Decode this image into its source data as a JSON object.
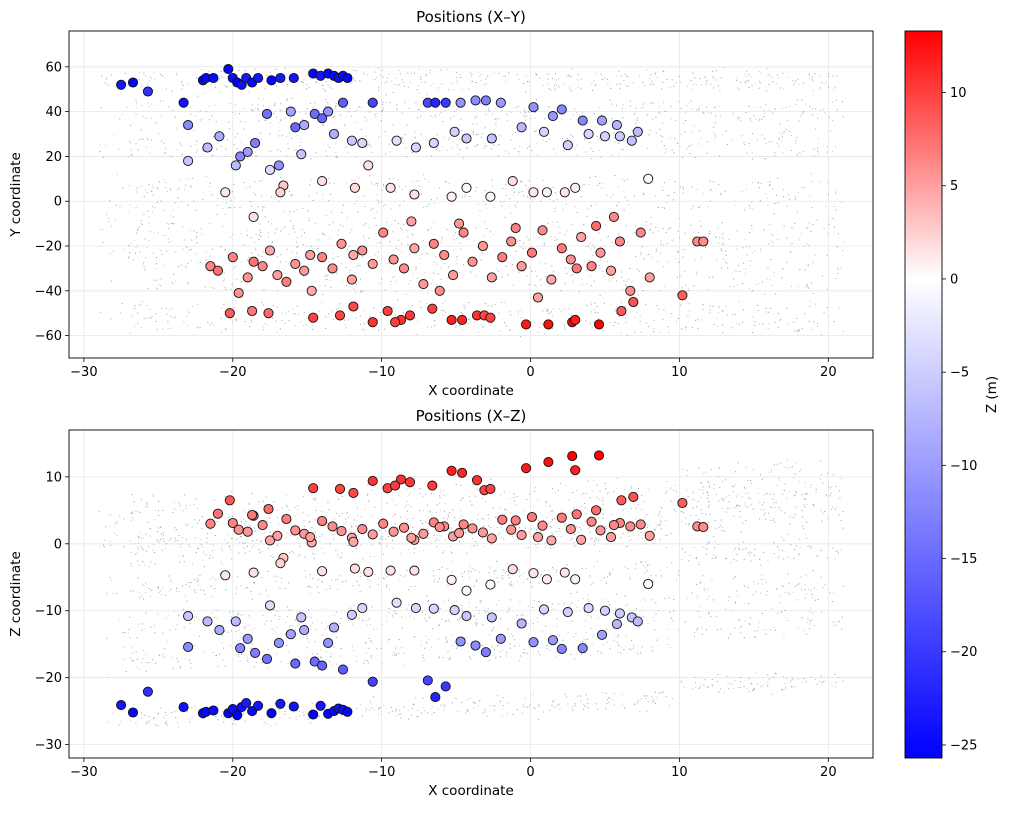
{
  "chart_data": {
    "type": "scatter",
    "panels": [
      {
        "title": "Positions (X–Y)",
        "xlabel": "X coordinate",
        "ylabel": "Y coordinate",
        "xlim": [
          -31,
          23
        ],
        "ylim": [
          -70,
          76
        ],
        "xticks": [
          -30,
          -20,
          -10,
          0,
          10,
          20
        ],
        "yticks": [
          -60,
          -40,
          -20,
          0,
          20,
          40,
          60
        ],
        "grid": true,
        "xtick_labels": [
          "−30",
          "−20",
          "−10",
          "0",
          "10",
          "20"
        ],
        "ytick_labels": [
          "−60",
          "−40",
          "−20",
          "0",
          "20",
          "40",
          "60"
        ]
      },
      {
        "title": "Positions (X–Z)",
        "xlabel": "X coordinate",
        "ylabel": "Z coordinate",
        "xlim": [
          -31,
          23
        ],
        "ylim": [
          -32,
          17
        ],
        "xticks": [
          -30,
          -20,
          -10,
          0,
          10,
          20
        ],
        "yticks": [
          -30,
          -20,
          -10,
          0,
          10
        ],
        "grid": true,
        "xtick_labels": [
          "−30",
          "−20",
          "−10",
          "0",
          "10",
          "20"
        ],
        "ytick_labels": [
          "−30",
          "−20",
          "−10",
          "0",
          "10"
        ]
      }
    ],
    "colorbar": {
      "label": "Z (m)",
      "range": [
        -25.7,
        13.3
      ],
      "ticks": [
        10,
        5,
        0,
        -5,
        -10,
        -15,
        -20,
        -25
      ],
      "tick_labels": [
        "10",
        "5",
        "0",
        "−5",
        "−10",
        "−15",
        "−20",
        "−25"
      ],
      "colormap": "bwr",
      "low_color": "#0000ff",
      "mid_color": "#ffffff",
      "high_color": "#ff0000"
    },
    "point_cloud": {
      "colors": [
        "#4a5f73",
        "#8a7f76",
        "#7f93a6"
      ]
    },
    "points": [
      {
        "x": -27.5,
        "y": 52,
        "z": -24.1
      },
      {
        "x": -26.7,
        "y": 53,
        "z": -25.2
      },
      {
        "x": -25.7,
        "y": 49,
        "z": -22.1
      },
      {
        "x": -23.3,
        "y": 44,
        "z": -24.4
      },
      {
        "x": -22.0,
        "y": 54,
        "z": -25.3
      },
      {
        "x": -21.8,
        "y": 55,
        "z": -25.1
      },
      {
        "x": -21.3,
        "y": 55,
        "z": -24.9
      },
      {
        "x": -20.3,
        "y": 59,
        "z": -25.3
      },
      {
        "x": -20.0,
        "y": 55,
        "z": -24.7
      },
      {
        "x": -19.7,
        "y": 53,
        "z": -25.6
      },
      {
        "x": -19.4,
        "y": 52,
        "z": -24.4
      },
      {
        "x": -19.1,
        "y": 55,
        "z": -23.8
      },
      {
        "x": -18.7,
        "y": 53,
        "z": -25.0
      },
      {
        "x": -18.3,
        "y": 55,
        "z": -24.2
      },
      {
        "x": -17.4,
        "y": 54,
        "z": -25.3
      },
      {
        "x": -16.8,
        "y": 55,
        "z": -23.9
      },
      {
        "x": -15.9,
        "y": 55,
        "z": -24.3
      },
      {
        "x": -14.6,
        "y": 57,
        "z": -25.5
      },
      {
        "x": -14.1,
        "y": 56,
        "z": -24.2
      },
      {
        "x": -13.6,
        "y": 57,
        "z": -25.4
      },
      {
        "x": -13.2,
        "y": 56,
        "z": -25.0
      },
      {
        "x": -12.9,
        "y": 55,
        "z": -24.6
      },
      {
        "x": -12.6,
        "y": 56,
        "z": -24.8
      },
      {
        "x": -12.3,
        "y": 55,
        "z": -25.1
      },
      {
        "x": -23.0,
        "y": 34,
        "z": -15.4
      },
      {
        "x": -21.7,
        "y": 24,
        "z": -11.6
      },
      {
        "x": -20.9,
        "y": 29,
        "z": -12.9
      },
      {
        "x": -19.5,
        "y": 20,
        "z": -15.6
      },
      {
        "x": -19.0,
        "y": 22,
        "z": -14.2
      },
      {
        "x": -18.5,
        "y": 26,
        "z": -16.3
      },
      {
        "x": -17.7,
        "y": 39,
        "z": -17.2
      },
      {
        "x": -16.9,
        "y": 16,
        "z": -14.8
      },
      {
        "x": -16.1,
        "y": 40,
        "z": -13.5
      },
      {
        "x": -15.8,
        "y": 33,
        "z": -17.9
      },
      {
        "x": -15.2,
        "y": 34,
        "z": -12.9
      },
      {
        "x": -14.5,
        "y": 39,
        "z": -17.6
      },
      {
        "x": -14.0,
        "y": 37,
        "z": -18.2
      },
      {
        "x": -13.6,
        "y": 40,
        "z": -14.8
      },
      {
        "x": -13.2,
        "y": 30,
        "z": -12.5
      },
      {
        "x": -12.6,
        "y": 44,
        "z": -18.8
      },
      {
        "x": -10.6,
        "y": 44,
        "z": -20.6
      },
      {
        "x": -6.9,
        "y": 44,
        "z": -20.4
      },
      {
        "x": -6.4,
        "y": 44,
        "z": -22.9
      },
      {
        "x": -5.7,
        "y": 44,
        "z": -21.3
      },
      {
        "x": -4.7,
        "y": 44,
        "z": -14.6
      },
      {
        "x": -3.7,
        "y": 45,
        "z": -15.2
      },
      {
        "x": -3.0,
        "y": 45,
        "z": -16.2
      },
      {
        "x": -2.0,
        "y": 44,
        "z": -14.2
      },
      {
        "x": 0.2,
        "y": 42,
        "z": -14.7
      },
      {
        "x": 1.5,
        "y": 38,
        "z": -14.4
      },
      {
        "x": 2.1,
        "y": 41,
        "z": -15.7
      },
      {
        "x": 3.5,
        "y": 36,
        "z": -15.6
      },
      {
        "x": 4.8,
        "y": 36,
        "z": -13.6
      },
      {
        "x": 5.8,
        "y": 34,
        "z": -12.0
      },
      {
        "x": 6.8,
        "y": 27,
        "z": -11.0
      },
      {
        "x": 7.2,
        "y": 31,
        "z": -11.6
      },
      {
        "x": -23.0,
        "y": 18,
        "z": -10.8
      },
      {
        "x": -19.8,
        "y": 16,
        "z": -11.6
      },
      {
        "x": -17.5,
        "y": 14,
        "z": -9.2
      },
      {
        "x": -15.4,
        "y": 21,
        "z": -11.0
      },
      {
        "x": -12.0,
        "y": 27,
        "z": -10.6
      },
      {
        "x": -11.3,
        "y": 26,
        "z": -9.6
      },
      {
        "x": -9.0,
        "y": 27,
        "z": -8.8
      },
      {
        "x": -7.7,
        "y": 24,
        "z": -9.6
      },
      {
        "x": -6.5,
        "y": 26,
        "z": -9.7
      },
      {
        "x": -5.1,
        "y": 31,
        "z": -9.9
      },
      {
        "x": -4.3,
        "y": 28,
        "z": -10.8
      },
      {
        "x": -2.6,
        "y": 28,
        "z": -11.0
      },
      {
        "x": -0.6,
        "y": 33,
        "z": -11.9
      },
      {
        "x": 0.9,
        "y": 31,
        "z": -9.8
      },
      {
        "x": 2.5,
        "y": 25,
        "z": -10.2
      },
      {
        "x": 3.9,
        "y": 30,
        "z": -9.6
      },
      {
        "x": 5.0,
        "y": 29,
        "z": -10.0
      },
      {
        "x": 6.0,
        "y": 29,
        "z": -10.4
      },
      {
        "x": -20.5,
        "y": 4,
        "z": -4.7
      },
      {
        "x": -18.6,
        "y": -7,
        "z": -4.3
      },
      {
        "x": -16.6,
        "y": 7,
        "z": -2.1
      },
      {
        "x": -14.0,
        "y": 9,
        "z": -4.1
      },
      {
        "x": -11.8,
        "y": 6,
        "z": -3.7
      },
      {
        "x": -10.9,
        "y": 16,
        "z": -4.2
      },
      {
        "x": -9.4,
        "y": 6,
        "z": -4.0
      },
      {
        "x": -7.8,
        "y": 3,
        "z": -4.0
      },
      {
        "x": -5.3,
        "y": 2,
        "z": -5.4
      },
      {
        "x": -4.3,
        "y": 6,
        "z": -7.0
      },
      {
        "x": -2.7,
        "y": 2,
        "z": -6.1
      },
      {
        "x": -1.2,
        "y": 9,
        "z": -3.8
      },
      {
        "x": 0.2,
        "y": 4,
        "z": -4.4
      },
      {
        "x": 1.1,
        "y": 4,
        "z": -5.3
      },
      {
        "x": 2.3,
        "y": 4,
        "z": -4.3
      },
      {
        "x": 3.0,
        "y": 6,
        "z": -5.3
      },
      {
        "x": 7.9,
        "y": 10,
        "z": -6.0
      },
      {
        "x": -16.8,
        "y": 4,
        "z": -2.9
      },
      {
        "x": -21.5,
        "y": -29,
        "z": 3.0
      },
      {
        "x": -21.0,
        "y": -31,
        "z": 4.5
      },
      {
        "x": -20.0,
        "y": -25,
        "z": 3.1
      },
      {
        "x": -19.6,
        "y": -41,
        "z": 2.1
      },
      {
        "x": -19.0,
        "y": -34,
        "z": 1.8
      },
      {
        "x": -18.6,
        "y": -27,
        "z": 4.2
      },
      {
        "x": -18.0,
        "y": -29,
        "z": 2.8
      },
      {
        "x": -17.5,
        "y": -22,
        "z": 0.5
      },
      {
        "x": -17.0,
        "y": -33,
        "z": 1.2
      },
      {
        "x": -16.4,
        "y": -36,
        "z": 3.7
      },
      {
        "x": -15.8,
        "y": -28,
        "z": 2.0
      },
      {
        "x": -15.2,
        "y": -31,
        "z": 1.5
      },
      {
        "x": -14.7,
        "y": -40,
        "z": 0.2
      },
      {
        "x": -14.0,
        "y": -25,
        "z": 3.4
      },
      {
        "x": -13.3,
        "y": -30,
        "z": 2.6
      },
      {
        "x": -12.7,
        "y": -19,
        "z": 1.9
      },
      {
        "x": -12.0,
        "y": -35,
        "z": 0.9
      },
      {
        "x": -11.3,
        "y": -22,
        "z": 2.2
      },
      {
        "x": -10.6,
        "y": -28,
        "z": 1.4
      },
      {
        "x": -9.9,
        "y": -14,
        "z": 3.0
      },
      {
        "x": -9.2,
        "y": -26,
        "z": 1.8
      },
      {
        "x": -8.5,
        "y": -30,
        "z": 2.4
      },
      {
        "x": -7.8,
        "y": -21,
        "z": 0.6
      },
      {
        "x": -7.2,
        "y": -37,
        "z": 1.5
      },
      {
        "x": -6.5,
        "y": -19,
        "z": 3.2
      },
      {
        "x": -5.8,
        "y": -24,
        "z": 2.6
      },
      {
        "x": -5.2,
        "y": -33,
        "z": 1.1
      },
      {
        "x": -4.5,
        "y": -14,
        "z": 2.9
      },
      {
        "x": -3.9,
        "y": -27,
        "z": 2.3
      },
      {
        "x": -3.2,
        "y": -20,
        "z": 1.7
      },
      {
        "x": -2.6,
        "y": -34,
        "z": 0.8
      },
      {
        "x": -1.9,
        "y": -25,
        "z": 3.6
      },
      {
        "x": -1.3,
        "y": -18,
        "z": 2.1
      },
      {
        "x": -0.6,
        "y": -29,
        "z": 1.3
      },
      {
        "x": 0.1,
        "y": -23,
        "z": 4.0
      },
      {
        "x": 0.8,
        "y": -13,
        "z": 2.7
      },
      {
        "x": 1.4,
        "y": -35,
        "z": 0.5
      },
      {
        "x": 2.1,
        "y": -21,
        "z": 3.9
      },
      {
        "x": 2.7,
        "y": -26,
        "z": 2.2
      },
      {
        "x": 3.4,
        "y": -16,
        "z": 0.6
      },
      {
        "x": 4.1,
        "y": -29,
        "z": 3.3
      },
      {
        "x": 4.7,
        "y": -23,
        "z": 2.0
      },
      {
        "x": 5.4,
        "y": -31,
        "z": 1.0
      },
      {
        "x": 6.0,
        "y": -18,
        "z": 3.1
      },
      {
        "x": 6.7,
        "y": -40,
        "z": 2.6
      },
      {
        "x": 7.4,
        "y": -14,
        "z": 2.9
      },
      {
        "x": 8.0,
        "y": -34,
        "z": 1.2
      },
      {
        "x": 10.2,
        "y": -42,
        "z": 6.1
      },
      {
        "x": 11.2,
        "y": -18,
        "z": 2.6
      },
      {
        "x": 11.6,
        "y": -18,
        "z": 2.5
      },
      {
        "x": -14.8,
        "y": -24,
        "z": 1.0
      },
      {
        "x": -8.0,
        "y": -9,
        "z": 0.9
      },
      {
        "x": -1.0,
        "y": -12,
        "z": 3.5
      },
      {
        "x": 4.4,
        "y": -11,
        "z": 5.0
      },
      {
        "x": -4.8,
        "y": -10,
        "z": 1.6
      },
      {
        "x": 3.1,
        "y": -30,
        "z": 4.4
      },
      {
        "x": -6.1,
        "y": -40,
        "z": 2.5
      },
      {
        "x": -11.9,
        "y": -24,
        "z": 0.3
      },
      {
        "x": 0.5,
        "y": -43,
        "z": 1.0
      },
      {
        "x": 5.6,
        "y": -7,
        "z": 2.8
      },
      {
        "x": -20.2,
        "y": -50,
        "z": 6.5
      },
      {
        "x": -18.7,
        "y": -49,
        "z": 4.3
      },
      {
        "x": -17.6,
        "y": -50,
        "z": 5.2
      },
      {
        "x": -14.6,
        "y": -52,
        "z": 8.3
      },
      {
        "x": -12.8,
        "y": -51,
        "z": 8.2
      },
      {
        "x": -11.9,
        "y": -47,
        "z": 7.6
      },
      {
        "x": -10.6,
        "y": -54,
        "z": 9.4
      },
      {
        "x": -9.6,
        "y": -49,
        "z": 8.3
      },
      {
        "x": -8.7,
        "y": -53,
        "z": 9.6
      },
      {
        "x": -8.1,
        "y": -51,
        "z": 9.2
      },
      {
        "x": -6.6,
        "y": -48,
        "z": 8.7
      },
      {
        "x": -5.3,
        "y": -53,
        "z": 10.9
      },
      {
        "x": -4.6,
        "y": -53,
        "z": 10.6
      },
      {
        "x": -3.6,
        "y": -51,
        "z": 9.5
      },
      {
        "x": -3.1,
        "y": -51,
        "z": 8.0
      },
      {
        "x": -2.7,
        "y": -52,
        "z": 8.2
      },
      {
        "x": -0.3,
        "y": -55,
        "z": 11.3
      },
      {
        "x": 1.2,
        "y": -55,
        "z": 12.2
      },
      {
        "x": 2.8,
        "y": -54,
        "z": 13.1
      },
      {
        "x": 3.0,
        "y": -53,
        "z": 11.0
      },
      {
        "x": 4.6,
        "y": -55,
        "z": 13.2
      },
      {
        "x": 6.1,
        "y": -49,
        "z": 6.5
      },
      {
        "x": 6.9,
        "y": -45,
        "z": 7.0
      },
      {
        "x": -9.1,
        "y": -54,
        "z": 8.7
      }
    ]
  }
}
